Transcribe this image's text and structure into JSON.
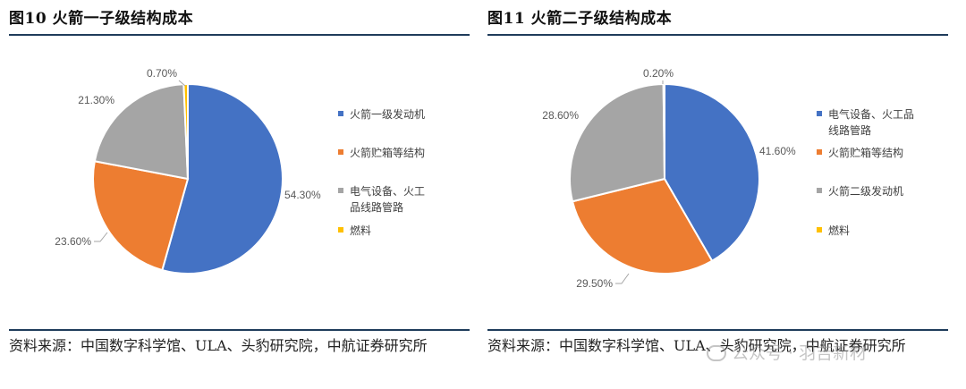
{
  "figures": [
    {
      "title": "图10  火箭一子级结构成本",
      "source": "资料来源：中国数字科学馆、ULA、头豹研究院，中航证券研究所"
    },
    {
      "title": "图11  火箭二子级结构成本",
      "source": "资料来源：中国数字科学馆、ULA、头豹研究院，中航证券研究所"
    }
  ],
  "chart_data": [
    {
      "type": "pie",
      "title": "",
      "legend_position": "right",
      "slices": [
        {
          "label": "火箭一级发动机",
          "label_lines": [
            "火箭一级发动机"
          ],
          "value": 54.3,
          "display": "54.30%",
          "color": "#4472C4"
        },
        {
          "label": "火箭贮箱等结构",
          "label_lines": [
            "火箭贮箱等结构"
          ],
          "value": 23.6,
          "display": "23.60%",
          "color": "#ED7D31"
        },
        {
          "label": "电气设备、火工品线路管路",
          "label_lines": [
            "电气设备、火工",
            "品线路管路"
          ],
          "value": 21.3,
          "display": "21.30%",
          "color": "#A5A5A5"
        },
        {
          "label": "燃料",
          "label_lines": [
            "燃料"
          ],
          "value": 0.7,
          "display": "0.70%",
          "color": "#FFC000"
        }
      ]
    },
    {
      "type": "pie",
      "title": "",
      "legend_position": "right",
      "slices": [
        {
          "label": "电气设备、火工品线路管路",
          "label_lines": [
            "电气设备、火工品",
            "线路管路"
          ],
          "value": 41.6,
          "display": "41.60%",
          "color": "#4472C4"
        },
        {
          "label": "火箭贮箱等结构",
          "label_lines": [
            "火箭贮箱等结构"
          ],
          "value": 29.5,
          "display": "29.50%",
          "color": "#ED7D31"
        },
        {
          "label": "火箭二级发动机",
          "label_lines": [
            "火箭二级发动机"
          ],
          "value": 28.6,
          "display": "28.60%",
          "color": "#A5A5A5"
        },
        {
          "label": "燃料",
          "label_lines": [
            "燃料"
          ],
          "value": 0.2,
          "display": "0.20%",
          "color": "#FFC000"
        }
      ]
    }
  ],
  "watermark": {
    "text": "公众号 · 羽吉新材"
  }
}
